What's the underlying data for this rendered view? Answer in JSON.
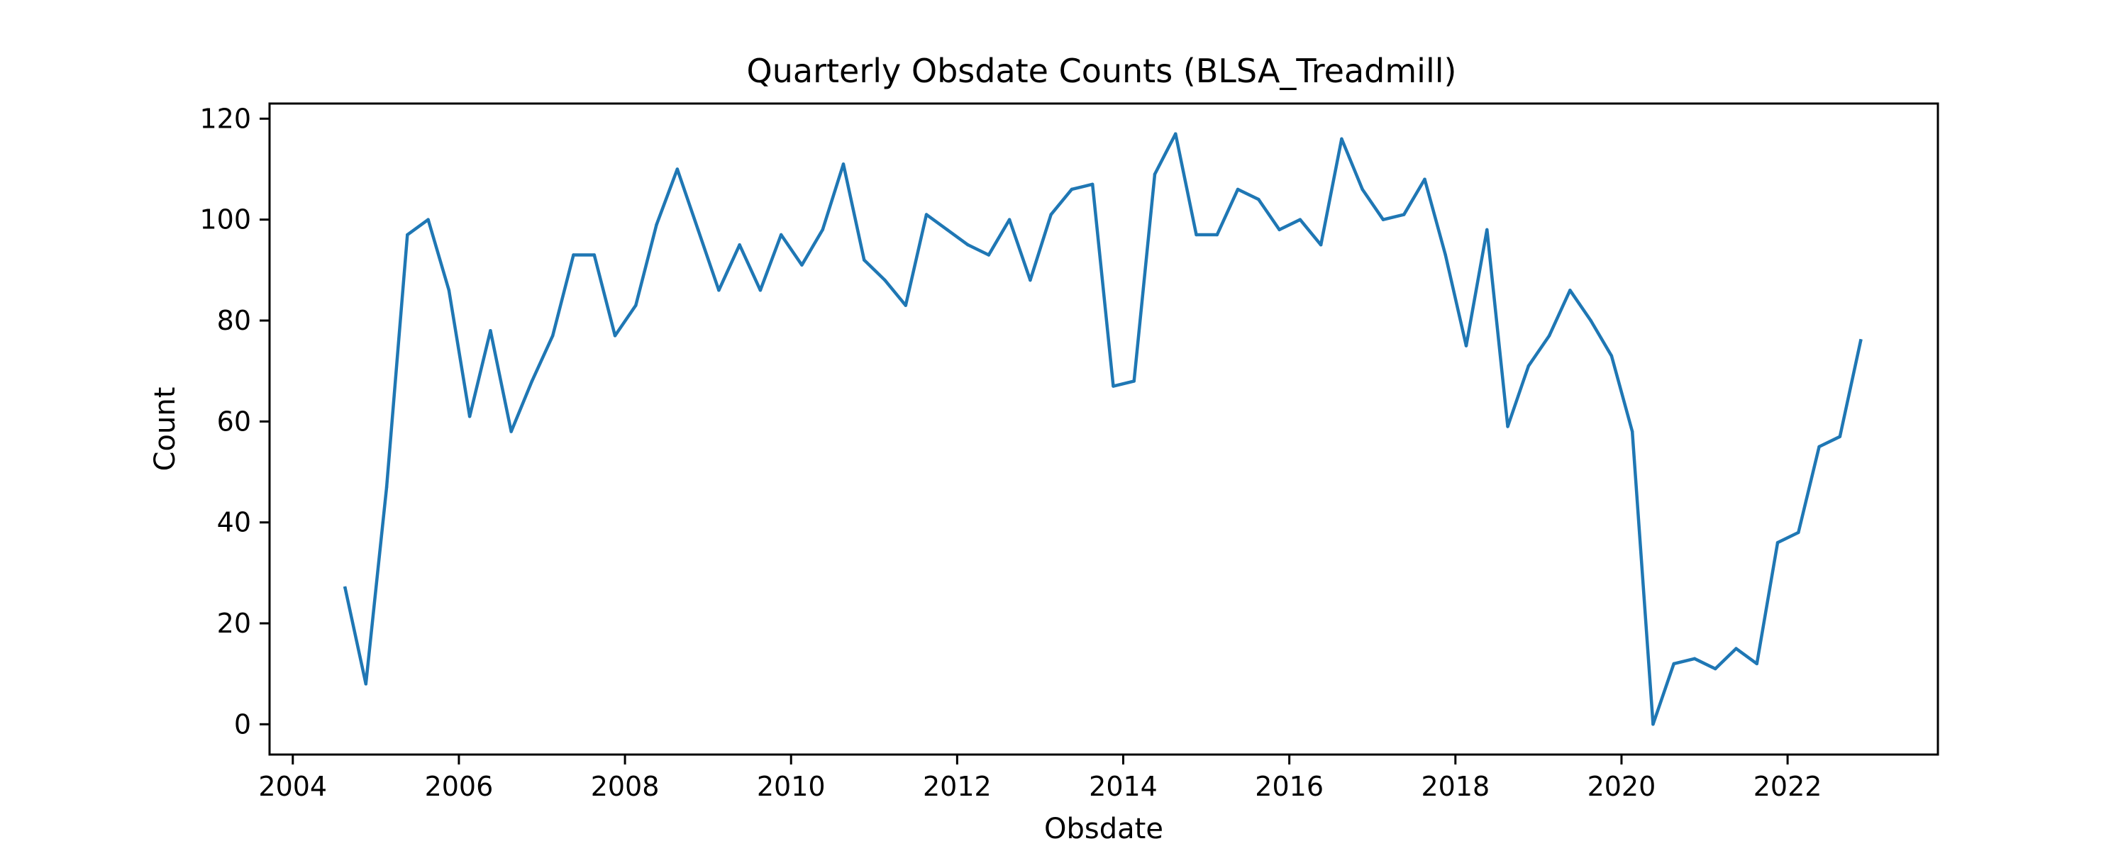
{
  "chart_data": {
    "type": "line",
    "title": "Quarterly Obsdate Counts (BLSA_Treadmill)",
    "xlabel": "Obsdate",
    "ylabel": "Count",
    "xlim": [
      2003.72,
      2023.81
    ],
    "ylim": [
      -6,
      123
    ],
    "xticks": [
      2004,
      2006,
      2008,
      2010,
      2012,
      2014,
      2016,
      2018,
      2020,
      2022
    ],
    "yticks": [
      0,
      20,
      40,
      60,
      80,
      100,
      120
    ],
    "grid": false,
    "legend": "none",
    "series": [
      {
        "name": "count",
        "color": "#1f77b4",
        "x": [
          2004.63,
          2004.88,
          2005.13,
          2005.38,
          2005.63,
          2005.88,
          2006.13,
          2006.38,
          2006.63,
          2006.88,
          2007.13,
          2007.38,
          2007.63,
          2007.88,
          2008.13,
          2008.38,
          2008.63,
          2008.88,
          2009.13,
          2009.38,
          2009.63,
          2009.88,
          2010.13,
          2010.38,
          2010.63,
          2010.88,
          2011.13,
          2011.38,
          2011.63,
          2011.88,
          2012.13,
          2012.38,
          2012.63,
          2012.88,
          2013.13,
          2013.38,
          2013.63,
          2013.88,
          2014.13,
          2014.38,
          2014.63,
          2014.88,
          2015.13,
          2015.38,
          2015.63,
          2015.88,
          2016.13,
          2016.38,
          2016.63,
          2016.88,
          2017.13,
          2017.38,
          2017.63,
          2017.88,
          2018.13,
          2018.38,
          2018.63,
          2018.88,
          2019.13,
          2019.38,
          2019.63,
          2019.88,
          2020.13,
          2020.38,
          2020.63,
          2020.88,
          2021.13,
          2021.38,
          2021.63,
          2021.88,
          2022.13,
          2022.38,
          2022.63,
          2022.88
        ],
        "values": [
          27,
          8,
          47,
          97,
          100,
          86,
          61,
          78,
          58,
          68,
          77,
          93,
          93,
          77,
          83,
          99,
          110,
          98,
          86,
          95,
          86,
          97,
          91,
          98,
          111,
          92,
          88,
          83,
          101,
          98,
          95,
          93,
          100,
          88,
          101,
          106,
          107,
          67,
          68,
          109,
          117,
          97,
          97,
          106,
          104,
          98,
          100,
          95,
          116,
          106,
          100,
          101,
          108,
          93,
          75,
          98,
          59,
          71,
          77,
          86,
          80,
          73,
          58,
          0,
          12,
          13,
          11,
          15,
          12,
          36,
          38,
          55,
          57,
          76
        ]
      }
    ]
  }
}
